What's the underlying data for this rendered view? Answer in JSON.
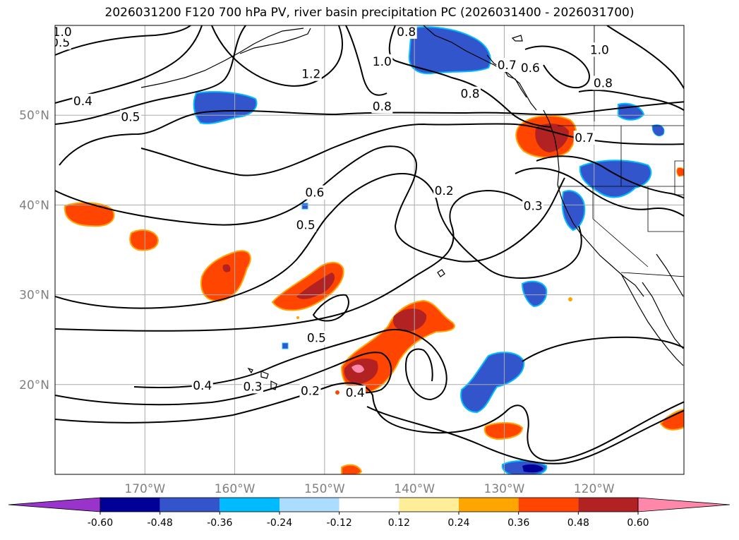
{
  "title": "2026031200 F120 700 hPa PV, river basin precipitation PC (2026031400 - 2026031700)",
  "map": {
    "lon_range": [
      -180,
      -110
    ],
    "lat_range": [
      10,
      60
    ],
    "lon_ticks": [
      {
        "value": -170,
        "label": "170°W"
      },
      {
        "value": -160,
        "label": "160°W"
      },
      {
        "value": -150,
        "label": "150°W"
      },
      {
        "value": -140,
        "label": "140°W"
      },
      {
        "value": -130,
        "label": "130°W"
      },
      {
        "value": -120,
        "label": "120°W"
      }
    ],
    "lat_ticks": [
      {
        "value": 50,
        "label": "50°N"
      },
      {
        "value": 40,
        "label": "40°N"
      },
      {
        "value": 30,
        "label": "30°N"
      },
      {
        "value": 20,
        "label": "20°N"
      }
    ],
    "contour_labels": [
      {
        "text": "0.5",
        "lon": -179.4,
        "lat": 58.1
      },
      {
        "text": "0.8",
        "lon": -140.9,
        "lat": 59.3
      },
      {
        "text": "1.0",
        "lon": -179.2,
        "lat": 59.3
      },
      {
        "text": "1.0",
        "lon": -119.4,
        "lat": 57.3
      },
      {
        "text": "1.0",
        "lon": -143.6,
        "lat": 56.0
      },
      {
        "text": "1.2",
        "lon": -151.5,
        "lat": 54.6
      },
      {
        "text": "0.7",
        "lon": -129.7,
        "lat": 55.6
      },
      {
        "text": "0.6",
        "lon": -127.1,
        "lat": 55.3
      },
      {
        "text": "0.8",
        "lon": -119.0,
        "lat": 53.6
      },
      {
        "text": "0.8",
        "lon": -133.8,
        "lat": 52.4
      },
      {
        "text": "0.4",
        "lon": -176.9,
        "lat": 51.6
      },
      {
        "text": "0.5",
        "lon": -171.6,
        "lat": 49.8
      },
      {
        "text": "0.8",
        "lon": -143.6,
        "lat": 51.0
      },
      {
        "text": "0.7",
        "lon": -121.1,
        "lat": 47.5
      },
      {
        "text": "0.2",
        "lon": -136.7,
        "lat": 41.6
      },
      {
        "text": "0.3",
        "lon": -126.8,
        "lat": 39.9
      },
      {
        "text": "0.6",
        "lon": -151.1,
        "lat": 41.4
      },
      {
        "text": "0.5",
        "lon": -152.1,
        "lat": 37.8
      },
      {
        "text": "0.5",
        "lon": -150.9,
        "lat": 25.2
      },
      {
        "text": "0.4",
        "lon": -163.6,
        "lat": 19.9
      },
      {
        "text": "0.3",
        "lon": -158.0,
        "lat": 19.8
      },
      {
        "text": "0.2",
        "lon": -151.6,
        "lat": 19.3
      },
      {
        "text": "0.4",
        "lon": -146.6,
        "lat": 19.1
      }
    ],
    "precip_colors": {
      "below_-0.60": "#9933cc",
      "-0.60_-0.48": "#000099",
      "-0.48_-0.36": "#3355cc",
      "-0.36_-0.24": "#00bbff",
      "-0.24_-0.12": "#aaddff",
      "0.12_0.24": "#ffee99",
      "0.24_0.36": "#ffa500",
      "0.36_0.48": "#ff4500",
      "0.48_0.60": "#b22222",
      "above_0.60": "#ff88aa"
    }
  },
  "colorbar": {
    "levels": [
      "-0.60",
      "-0.48",
      "-0.36",
      "-0.24",
      "-0.12",
      "0.12",
      "0.24",
      "0.36",
      "0.48",
      "0.60"
    ],
    "colors": [
      "#9933cc",
      "#000099",
      "#3355cc",
      "#00bbff",
      "#aaddff",
      "#ffffff",
      "#ffee99",
      "#ffa500",
      "#ff4500",
      "#b22222",
      "#ff88aa"
    ]
  }
}
